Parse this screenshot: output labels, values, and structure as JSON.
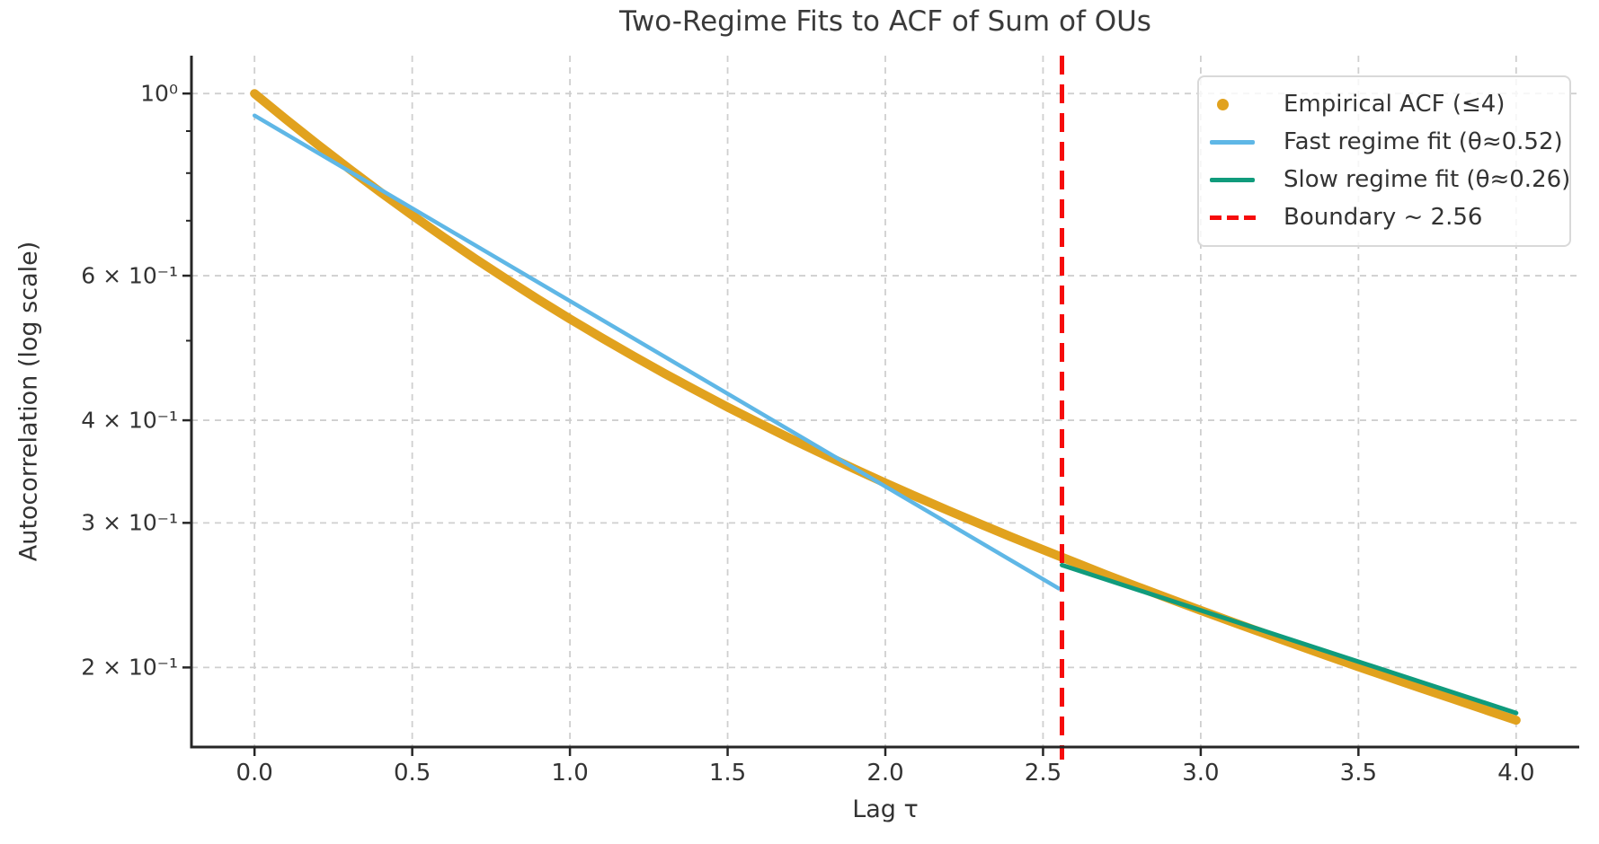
{
  "title": "Two-Regime Fits to ACF of Sum of OUs",
  "axes": {
    "xlabel": "Lag τ",
    "ylabel": "Autocorrelation (log scale)"
  },
  "colors": {
    "empirical": "#e1a21e",
    "fast_fit": "#5fb7e6",
    "slow_fit": "#109b7c",
    "boundary": "#f60c0c",
    "grid": "#cfcfcf",
    "spine": "#262626",
    "text": "#333333"
  },
  "legend": {
    "items": [
      {
        "label": "Empirical ACF (≤4)",
        "marker": "dot",
        "color": "#e1a21e"
      },
      {
        "label": "Fast regime fit (θ≈0.52)",
        "marker": "line",
        "color": "#5fb7e6"
      },
      {
        "label": "Slow regime fit (θ≈0.26)",
        "marker": "line",
        "color": "#109b7c"
      },
      {
        "label": "Boundary ~ 2.56",
        "marker": "dashed-line",
        "color": "#f60c0c"
      }
    ]
  },
  "chart_data": {
    "type": "line",
    "title": "Two-Regime Fits to ACF of Sum of OUs",
    "xlabel": "Lag τ",
    "ylabel": "Autocorrelation (log scale)",
    "y_scale": "log",
    "xlim": [
      -0.2,
      4.2
    ],
    "ylim": [
      0.16,
      1.112
    ],
    "x_ticks": [
      0.0,
      0.5,
      1.0,
      1.5,
      2.0,
      2.5,
      3.0,
      3.5,
      4.0
    ],
    "x_tick_labels": [
      "0.0",
      "0.5",
      "1.0",
      "1.5",
      "2.0",
      "2.5",
      "3.0",
      "3.5",
      "4.0"
    ],
    "y_ticks": [
      1.0,
      0.6,
      0.4,
      0.3,
      0.2
    ],
    "y_tick_labels": [
      "10⁰",
      "6 × 10⁻¹",
      "4 × 10⁻¹",
      "3 × 10⁻¹",
      "2 × 10⁻¹"
    ],
    "y_minor_ticks": [
      0.9,
      0.8,
      0.7,
      0.5
    ],
    "grid": "dashed-major",
    "legend_position": "upper right",
    "series": [
      {
        "name": "Empirical ACF (≤4)",
        "style": "thick-dotted-line",
        "color": "#e1a21e",
        "x": [
          0.0,
          0.1,
          0.2,
          0.3,
          0.4,
          0.5,
          0.6,
          0.7,
          0.8,
          0.9,
          1.0,
          1.1,
          1.2,
          1.3,
          1.4,
          1.5,
          1.6,
          1.7,
          1.8,
          1.9,
          2.0,
          2.1,
          2.2,
          2.3,
          2.4,
          2.5,
          2.6,
          2.7,
          2.8,
          2.9,
          3.0,
          3.1,
          3.2,
          3.3,
          3.4,
          3.5,
          3.6,
          3.7,
          3.8,
          3.9,
          4.0
        ],
        "y": [
          1.0,
          0.93,
          0.8668,
          0.8097,
          0.7578,
          0.7108,
          0.6681,
          0.6292,
          0.5937,
          0.5612,
          0.5315,
          0.5043,
          0.4792,
          0.4561,
          0.4348,
          0.4151,
          0.3969,
          0.3799,
          0.3641,
          0.3493,
          0.3355,
          0.3226,
          0.3105,
          0.2991,
          0.2883,
          0.2782,
          0.2686,
          0.2594,
          0.2508,
          0.2426,
          0.2347,
          0.2272,
          0.2201,
          0.2133,
          0.2067,
          0.2004,
          0.1944,
          0.1886,
          0.1831,
          0.1777,
          0.1725
        ]
      },
      {
        "name": "Fast regime fit (θ≈0.52)",
        "style": "line",
        "color": "#5fb7e6",
        "theta": 0.52,
        "x": [
          0.0,
          2.55
        ],
        "y": [
          0.94,
          0.2496
        ]
      },
      {
        "name": "Slow regime fit (θ≈0.26)",
        "style": "line",
        "color": "#109b7c",
        "theta": 0.26,
        "x": [
          2.56,
          4.0
        ],
        "y": [
          0.2665,
          0.176
        ]
      },
      {
        "name": "Boundary ~ 2.56",
        "style": "vline-dashed",
        "color": "#f60c0c",
        "x": 2.56
      }
    ]
  }
}
